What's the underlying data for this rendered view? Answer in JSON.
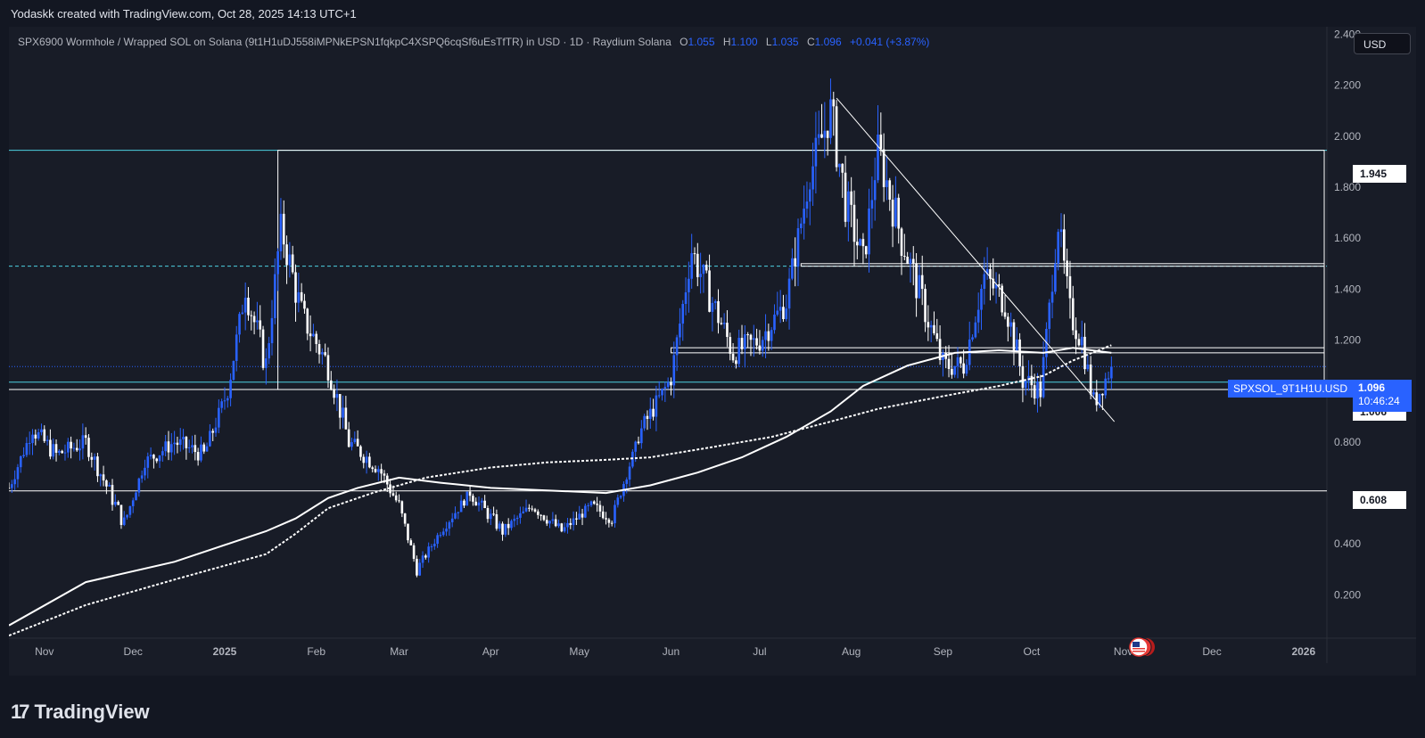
{
  "header": {
    "author_line": "Yodaskk created with TradingView.com, Oct 28, 2025 14:13 UTC+1"
  },
  "legend": {
    "title": "SPX6900 Wormhole / Wrapped SOL on Solana (9t1H1uDJ558iMPNkEPSN1fqkpC4XSPQ6cqSf6uEsTfTR) in USD · 1D · Raydium Solana",
    "o_label": "O",
    "o_value": "1.055",
    "h_label": "H",
    "h_value": "1.100",
    "l_label": "L",
    "l_value": "1.035",
    "c_label": "C",
    "c_value": "1.096",
    "change": "+0.041 (+3.87%)"
  },
  "currency_button": "USD",
  "price_tags": {
    "top_level": "1.945",
    "mid_level": "1.006",
    "low_level": "0.608"
  },
  "last_price": {
    "symbol": "SPXSOL_9T1H1U.USD",
    "price": "1.096",
    "countdown": "10:46:24"
  },
  "footer": {
    "brand": "TradingView",
    "logo_glyph": "17"
  },
  "colors": {
    "background": "#181c27",
    "up": "#2962ff",
    "down": "#ffffff",
    "level_cyan": "#4dd0e1",
    "grid": "#262a36"
  },
  "icons": {
    "flag": "us-flag-icon"
  },
  "chart_data": {
    "type": "candlestick",
    "title": "SPX6900 Wormhole / Wrapped SOL on Solana in USD · 1D · Raydium Solana",
    "ylim": [
      0.03,
      2.43
    ],
    "y_ticks": [
      "2.400",
      "2.200",
      "2.000",
      "1.800",
      "1.600",
      "1.400",
      "1.200",
      "0.800",
      "0.400",
      "0.200"
    ],
    "x_ticks": [
      "Nov",
      "Dec",
      "2025",
      "Feb",
      "Mar",
      "Apr",
      "May",
      "Jun",
      "Jul",
      "Aug",
      "Sep",
      "Oct",
      "Nov",
      "Dec",
      "2026"
    ],
    "x_range_days": [
      "2024-10-20",
      "2026-01-08"
    ],
    "grid": false,
    "close_path": [
      [
        "2024-10-20",
        0.62
      ],
      [
        "2024-10-28",
        0.85
      ],
      [
        "2024-11-05",
        0.75
      ],
      [
        "2024-11-15",
        0.8
      ],
      [
        "2024-11-28",
        0.48
      ],
      [
        "2024-12-05",
        0.72
      ],
      [
        "2024-12-15",
        0.8
      ],
      [
        "2024-12-25",
        0.75
      ],
      [
        "2025-01-02",
        1.0
      ],
      [
        "2025-01-08",
        1.4
      ],
      [
        "2025-01-15",
        1.1
      ],
      [
        "2025-01-20",
        1.65
      ],
      [
        "2025-01-27",
        1.3
      ],
      [
        "2025-02-05",
        1.1
      ],
      [
        "2025-02-12",
        0.8
      ],
      [
        "2025-02-22",
        0.7
      ],
      [
        "2025-03-01",
        0.55
      ],
      [
        "2025-03-07",
        0.3
      ],
      [
        "2025-03-15",
        0.45
      ],
      [
        "2025-03-25",
        0.6
      ],
      [
        "2025-04-05",
        0.45
      ],
      [
        "2025-04-15",
        0.55
      ],
      [
        "2025-04-25",
        0.45
      ],
      [
        "2025-05-05",
        0.55
      ],
      [
        "2025-05-12",
        0.5
      ],
      [
        "2025-05-22",
        0.85
      ],
      [
        "2025-06-01",
        1.05
      ],
      [
        "2025-06-08",
        1.55
      ],
      [
        "2025-06-15",
        1.35
      ],
      [
        "2025-06-22",
        1.15
      ],
      [
        "2025-07-01",
        1.2
      ],
      [
        "2025-07-10",
        1.35
      ],
      [
        "2025-07-18",
        1.85
      ],
      [
        "2025-07-25",
        2.1
      ],
      [
        "2025-07-30",
        1.75
      ],
      [
        "2025-08-05",
        1.5
      ],
      [
        "2025-08-10",
        1.95
      ],
      [
        "2025-08-18",
        1.6
      ],
      [
        "2025-08-25",
        1.35
      ],
      [
        "2025-09-01",
        1.1
      ],
      [
        "2025-09-08",
        1.1
      ],
      [
        "2025-09-15",
        1.45
      ],
      [
        "2025-09-22",
        1.35
      ],
      [
        "2025-09-28",
        1.05
      ],
      [
        "2025-10-04",
        1.0
      ],
      [
        "2025-10-10",
        1.65
      ],
      [
        "2025-10-14",
        1.3
      ],
      [
        "2025-10-18",
        1.2
      ],
      [
        "2025-10-22",
        0.95
      ],
      [
        "2025-10-28",
        1.096
      ]
    ],
    "ma_solid": [
      [
        "2024-10-20",
        0.08
      ],
      [
        "2024-11-15",
        0.25
      ],
      [
        "2024-12-15",
        0.33
      ],
      [
        "2025-01-15",
        0.45
      ],
      [
        "2025-01-25",
        0.5
      ],
      [
        "2025-02-05",
        0.58
      ],
      [
        "2025-02-15",
        0.62
      ],
      [
        "2025-03-01",
        0.66
      ],
      [
        "2025-03-15",
        0.64
      ],
      [
        "2025-04-01",
        0.62
      ],
      [
        "2025-04-20",
        0.61
      ],
      [
        "2025-05-10",
        0.6
      ],
      [
        "2025-05-25",
        0.63
      ],
      [
        "2025-06-10",
        0.68
      ],
      [
        "2025-06-25",
        0.74
      ],
      [
        "2025-07-10",
        0.82
      ],
      [
        "2025-07-25",
        0.92
      ],
      [
        "2025-08-05",
        1.02
      ],
      [
        "2025-08-20",
        1.1
      ],
      [
        "2025-09-05",
        1.15
      ],
      [
        "2025-09-20",
        1.16
      ],
      [
        "2025-10-05",
        1.15
      ],
      [
        "2025-10-15",
        1.17
      ],
      [
        "2025-10-28",
        1.15
      ]
    ],
    "ma_dashed": [
      [
        "2024-10-20",
        0.04
      ],
      [
        "2024-11-15",
        0.16
      ],
      [
        "2024-12-15",
        0.26
      ],
      [
        "2025-01-15",
        0.36
      ],
      [
        "2025-01-25",
        0.44
      ],
      [
        "2025-02-05",
        0.54
      ],
      [
        "2025-02-20",
        0.6
      ],
      [
        "2025-03-10",
        0.66
      ],
      [
        "2025-04-01",
        0.7
      ],
      [
        "2025-04-20",
        0.72
      ],
      [
        "2025-05-10",
        0.73
      ],
      [
        "2025-05-25",
        0.74
      ],
      [
        "2025-06-15",
        0.78
      ],
      [
        "2025-07-05",
        0.82
      ],
      [
        "2025-07-25",
        0.88
      ],
      [
        "2025-08-10",
        0.93
      ],
      [
        "2025-09-01",
        0.98
      ],
      [
        "2025-09-20",
        1.02
      ],
      [
        "2025-10-05",
        1.06
      ],
      [
        "2025-10-15",
        1.12
      ],
      [
        "2025-10-28",
        1.18
      ]
    ],
    "levels": [
      {
        "price": 1.945,
        "style": "solid",
        "color": "#4dd0e1"
      },
      {
        "price": 1.49,
        "style": "dashed",
        "color": "#4dd0e1"
      },
      {
        "price": 1.096,
        "style": "dotted",
        "color": "#2962ff"
      },
      {
        "price": 1.035,
        "style": "solid",
        "color": "#4dd0e1"
      },
      {
        "price": 1.006,
        "style": "solid",
        "color": "#ffffff"
      },
      {
        "price": 0.608,
        "style": "solid",
        "color": "#ffffff"
      }
    ],
    "rectangles": [
      {
        "from": "2025-01-19",
        "to": "2026-01-08",
        "low": 1.006,
        "high": 1.945
      },
      {
        "from": "2025-07-15",
        "to": "2026-01-08",
        "low": 1.49,
        "high": 1.5
      },
      {
        "from": "2025-06-01",
        "to": "2026-01-08",
        "low": 1.15,
        "high": 1.17
      }
    ],
    "trendline": [
      [
        "2025-07-27",
        2.15
      ],
      [
        "2025-10-29",
        0.88
      ]
    ]
  }
}
